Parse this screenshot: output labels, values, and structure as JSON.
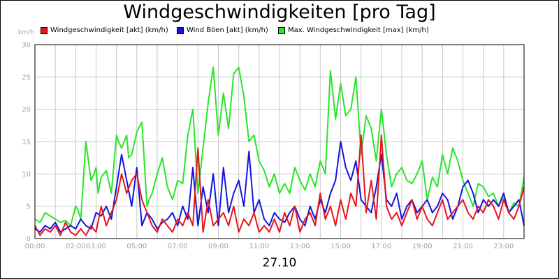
{
  "title": "Windgeschwindigkeiten [pro Tag]",
  "date_label": "27.10",
  "legend": [
    {
      "label": "Windgeschwindigkeit [akt] (km/h)",
      "color": "#e8141c"
    },
    {
      "label": "Wind Böen [akt] (km/h)",
      "color": "#1414e0"
    },
    {
      "label": "Max. Windgeschwindigkeit [max] (km/h)",
      "color": "#28e628"
    }
  ],
  "chart_data": {
    "type": "line",
    "title": "Windgeschwindigkeiten [pro Tag]",
    "ylabel": "km/h",
    "xlabel": "27.10",
    "xlim": [
      0,
      24
    ],
    "ylim": [
      0,
      30
    ],
    "yticks": [
      0,
      5,
      10,
      15,
      20,
      25,
      30
    ],
    "xticks": [
      {
        "x": 0,
        "label": "00:00"
      },
      {
        "x": 2,
        "label": "02:00"
      },
      {
        "x": 3,
        "label": "03:00"
      },
      {
        "x": 5,
        "label": "05:00"
      },
      {
        "x": 7,
        "label": "07:00"
      },
      {
        "x": 9,
        "label": "09:00"
      },
      {
        "x": 11,
        "label": "11:00"
      },
      {
        "x": 13,
        "label": "13:00"
      },
      {
        "x": 15,
        "label": "15:00"
      },
      {
        "x": 17,
        "label": "17:00"
      },
      {
        "x": 19,
        "label": "19:00"
      },
      {
        "x": 21,
        "label": "21:00"
      },
      {
        "x": 23,
        "label": "23:00"
      }
    ],
    "grid": true,
    "legend_position": "top",
    "series": [
      {
        "name": "Max. Windgeschwindigkeit [max] (km/h)",
        "color": "#28e628",
        "x": [
          0,
          0.25,
          0.5,
          0.75,
          1,
          1.25,
          1.5,
          1.75,
          2,
          2.1,
          2.25,
          2.5,
          2.75,
          2.9,
          3,
          3.1,
          3.25,
          3.5,
          3.75,
          4,
          4.1,
          4.25,
          4.5,
          4.6,
          4.75,
          5,
          5.25,
          5.5,
          5.6,
          5.75,
          6,
          6.25,
          6.5,
          6.75,
          7,
          7.25,
          7.5,
          7.75,
          8,
          8.25,
          8.5,
          8.75,
          9,
          9.25,
          9.5,
          9.75,
          10,
          10.25,
          10.5,
          10.75,
          11,
          11.25,
          11.5,
          11.75,
          12,
          12.25,
          12.5,
          12.75,
          13,
          13.25,
          13.5,
          13.75,
          14,
          14.25,
          14.5,
          14.75,
          15,
          15.25,
          15.5,
          15.75,
          16,
          16.25,
          16.5,
          16.75,
          17,
          17.25,
          17.5,
          17.75,
          18,
          18.25,
          18.5,
          18.75,
          19,
          19.25,
          19.5,
          19.75,
          20,
          20.25,
          20.5,
          20.75,
          21,
          21.25,
          21.5,
          21.75,
          22,
          22.25,
          22.5,
          22.75,
          23,
          23.25,
          23.5,
          23.75,
          24
        ],
        "values": [
          3,
          2.5,
          4,
          3.5,
          3,
          2.5,
          2.8,
          2,
          5,
          4.5,
          3,
          15,
          9,
          10,
          11,
          7,
          9.5,
          10.5,
          7,
          16,
          15,
          14,
          16,
          12.5,
          13,
          16.5,
          18,
          5,
          6,
          7,
          10,
          12.5,
          8,
          6,
          9,
          8.5,
          16,
          20,
          7,
          14,
          21,
          26.5,
          16,
          22.5,
          17,
          25.5,
          26.5,
          22,
          15,
          16,
          12,
          10.5,
          8,
          10,
          7,
          8.5,
          7,
          11,
          9,
          7.5,
          10,
          8,
          12,
          10,
          26,
          18.5,
          24,
          19,
          20,
          25,
          13,
          19,
          17,
          12,
          20,
          13,
          8,
          10,
          11,
          9,
          8.5,
          10,
          12,
          6,
          9.5,
          8,
          13,
          10,
          14,
          12,
          9,
          7,
          5,
          8.5,
          8,
          6.5,
          7,
          5,
          6.5,
          4,
          5.5,
          5,
          9.5
        ]
      },
      {
        "name": "Wind Böen [akt] (km/h)",
        "color": "#1414e0",
        "x": [
          0,
          0.25,
          0.5,
          0.75,
          1,
          1.25,
          1.5,
          1.75,
          2,
          2.25,
          2.5,
          2.75,
          3,
          3.25,
          3.5,
          3.75,
          4,
          4.25,
          4.5,
          4.75,
          5,
          5.25,
          5.5,
          5.75,
          6,
          6.25,
          6.5,
          6.75,
          7,
          7.25,
          7.5,
          7.75,
          8,
          8.25,
          8.5,
          8.75,
          9,
          9.25,
          9.5,
          9.75,
          10,
          10.25,
          10.5,
          10.75,
          11,
          11.25,
          11.5,
          11.75,
          12,
          12.25,
          12.5,
          12.75,
          13,
          13.25,
          13.5,
          13.75,
          14,
          14.25,
          14.5,
          14.75,
          15,
          15.25,
          15.5,
          15.75,
          16,
          16.25,
          16.5,
          16.75,
          17,
          17.25,
          17.5,
          17.75,
          18,
          18.25,
          18.5,
          18.75,
          19,
          19.25,
          19.5,
          19.75,
          20,
          20.25,
          20.5,
          20.75,
          21,
          21.25,
          21.5,
          21.75,
          22,
          22.25,
          22.5,
          22.75,
          23,
          23.25,
          23.5,
          23.75,
          24
        ],
        "values": [
          1.5,
          1,
          2,
          1.5,
          2.5,
          1,
          1.5,
          2,
          1.5,
          3,
          2,
          1.5,
          4,
          3.5,
          5,
          3,
          8,
          13,
          9,
          5,
          11,
          2,
          4,
          3,
          1.5,
          2.5,
          3,
          4,
          2,
          5,
          3,
          11,
          2,
          8,
          4,
          10,
          2,
          11,
          4,
          7,
          9,
          5,
          13.5,
          4,
          6,
          3,
          2,
          4,
          3,
          2.5,
          4,
          5,
          3,
          2,
          5,
          3,
          6,
          4,
          7,
          9,
          15,
          11,
          9,
          12,
          6,
          5,
          4,
          8,
          13,
          6,
          5,
          7,
          3,
          5,
          6,
          4,
          5,
          6,
          4,
          5,
          7,
          6,
          3,
          5,
          8,
          9,
          7,
          4,
          6,
          5,
          6,
          5,
          7,
          4,
          5,
          6,
          2
        ]
      },
      {
        "name": "Windgeschwindigkeit [akt] (km/h)",
        "color": "#e8141c",
        "x": [
          0,
          0.25,
          0.5,
          0.75,
          1,
          1.25,
          1.5,
          1.75,
          2,
          2.25,
          2.5,
          2.75,
          3,
          3.25,
          3.5,
          3.75,
          4,
          4.25,
          4.5,
          4.75,
          5,
          5.25,
          5.5,
          5.75,
          6,
          6.25,
          6.5,
          6.75,
          7,
          7.25,
          7.5,
          7.75,
          8,
          8.25,
          8.5,
          8.75,
          9,
          9.25,
          9.5,
          9.75,
          10,
          10.25,
          10.5,
          10.75,
          11,
          11.25,
          11.5,
          11.75,
          12,
          12.25,
          12.5,
          12.75,
          13,
          13.25,
          13.5,
          13.75,
          14,
          14.25,
          14.5,
          14.75,
          15,
          15.25,
          15.5,
          15.75,
          16,
          16.25,
          16.5,
          16.75,
          17,
          17.25,
          17.5,
          17.75,
          18,
          18.25,
          18.5,
          18.75,
          19,
          19.25,
          19.5,
          19.75,
          20,
          20.25,
          20.5,
          20.75,
          21,
          21.25,
          21.5,
          21.75,
          22,
          22.25,
          22.5,
          22.75,
          23,
          23.25,
          23.5,
          23.75,
          24
        ],
        "values": [
          2,
          0.5,
          1.5,
          1,
          2,
          0.5,
          2.5,
          1,
          0.5,
          1.5,
          0.5,
          2,
          1,
          5,
          2,
          4,
          6,
          10,
          7,
          9,
          10,
          6,
          4,
          2,
          1,
          3,
          2,
          1,
          3,
          2,
          4,
          2,
          14,
          1,
          6,
          2,
          3,
          4,
          2,
          5,
          1,
          3,
          2,
          4,
          1,
          2,
          1,
          3,
          1,
          4,
          2,
          5,
          1,
          3,
          4,
          2,
          7,
          3,
          5,
          2,
          6,
          3,
          7,
          5,
          16,
          4,
          9,
          3,
          16,
          5,
          3,
          4,
          2,
          4,
          6,
          3,
          5,
          3,
          2,
          4,
          6,
          3,
          4,
          5,
          6,
          4,
          3,
          5,
          4,
          6,
          5,
          3,
          6,
          4,
          3,
          5,
          8
        ]
      }
    ]
  }
}
